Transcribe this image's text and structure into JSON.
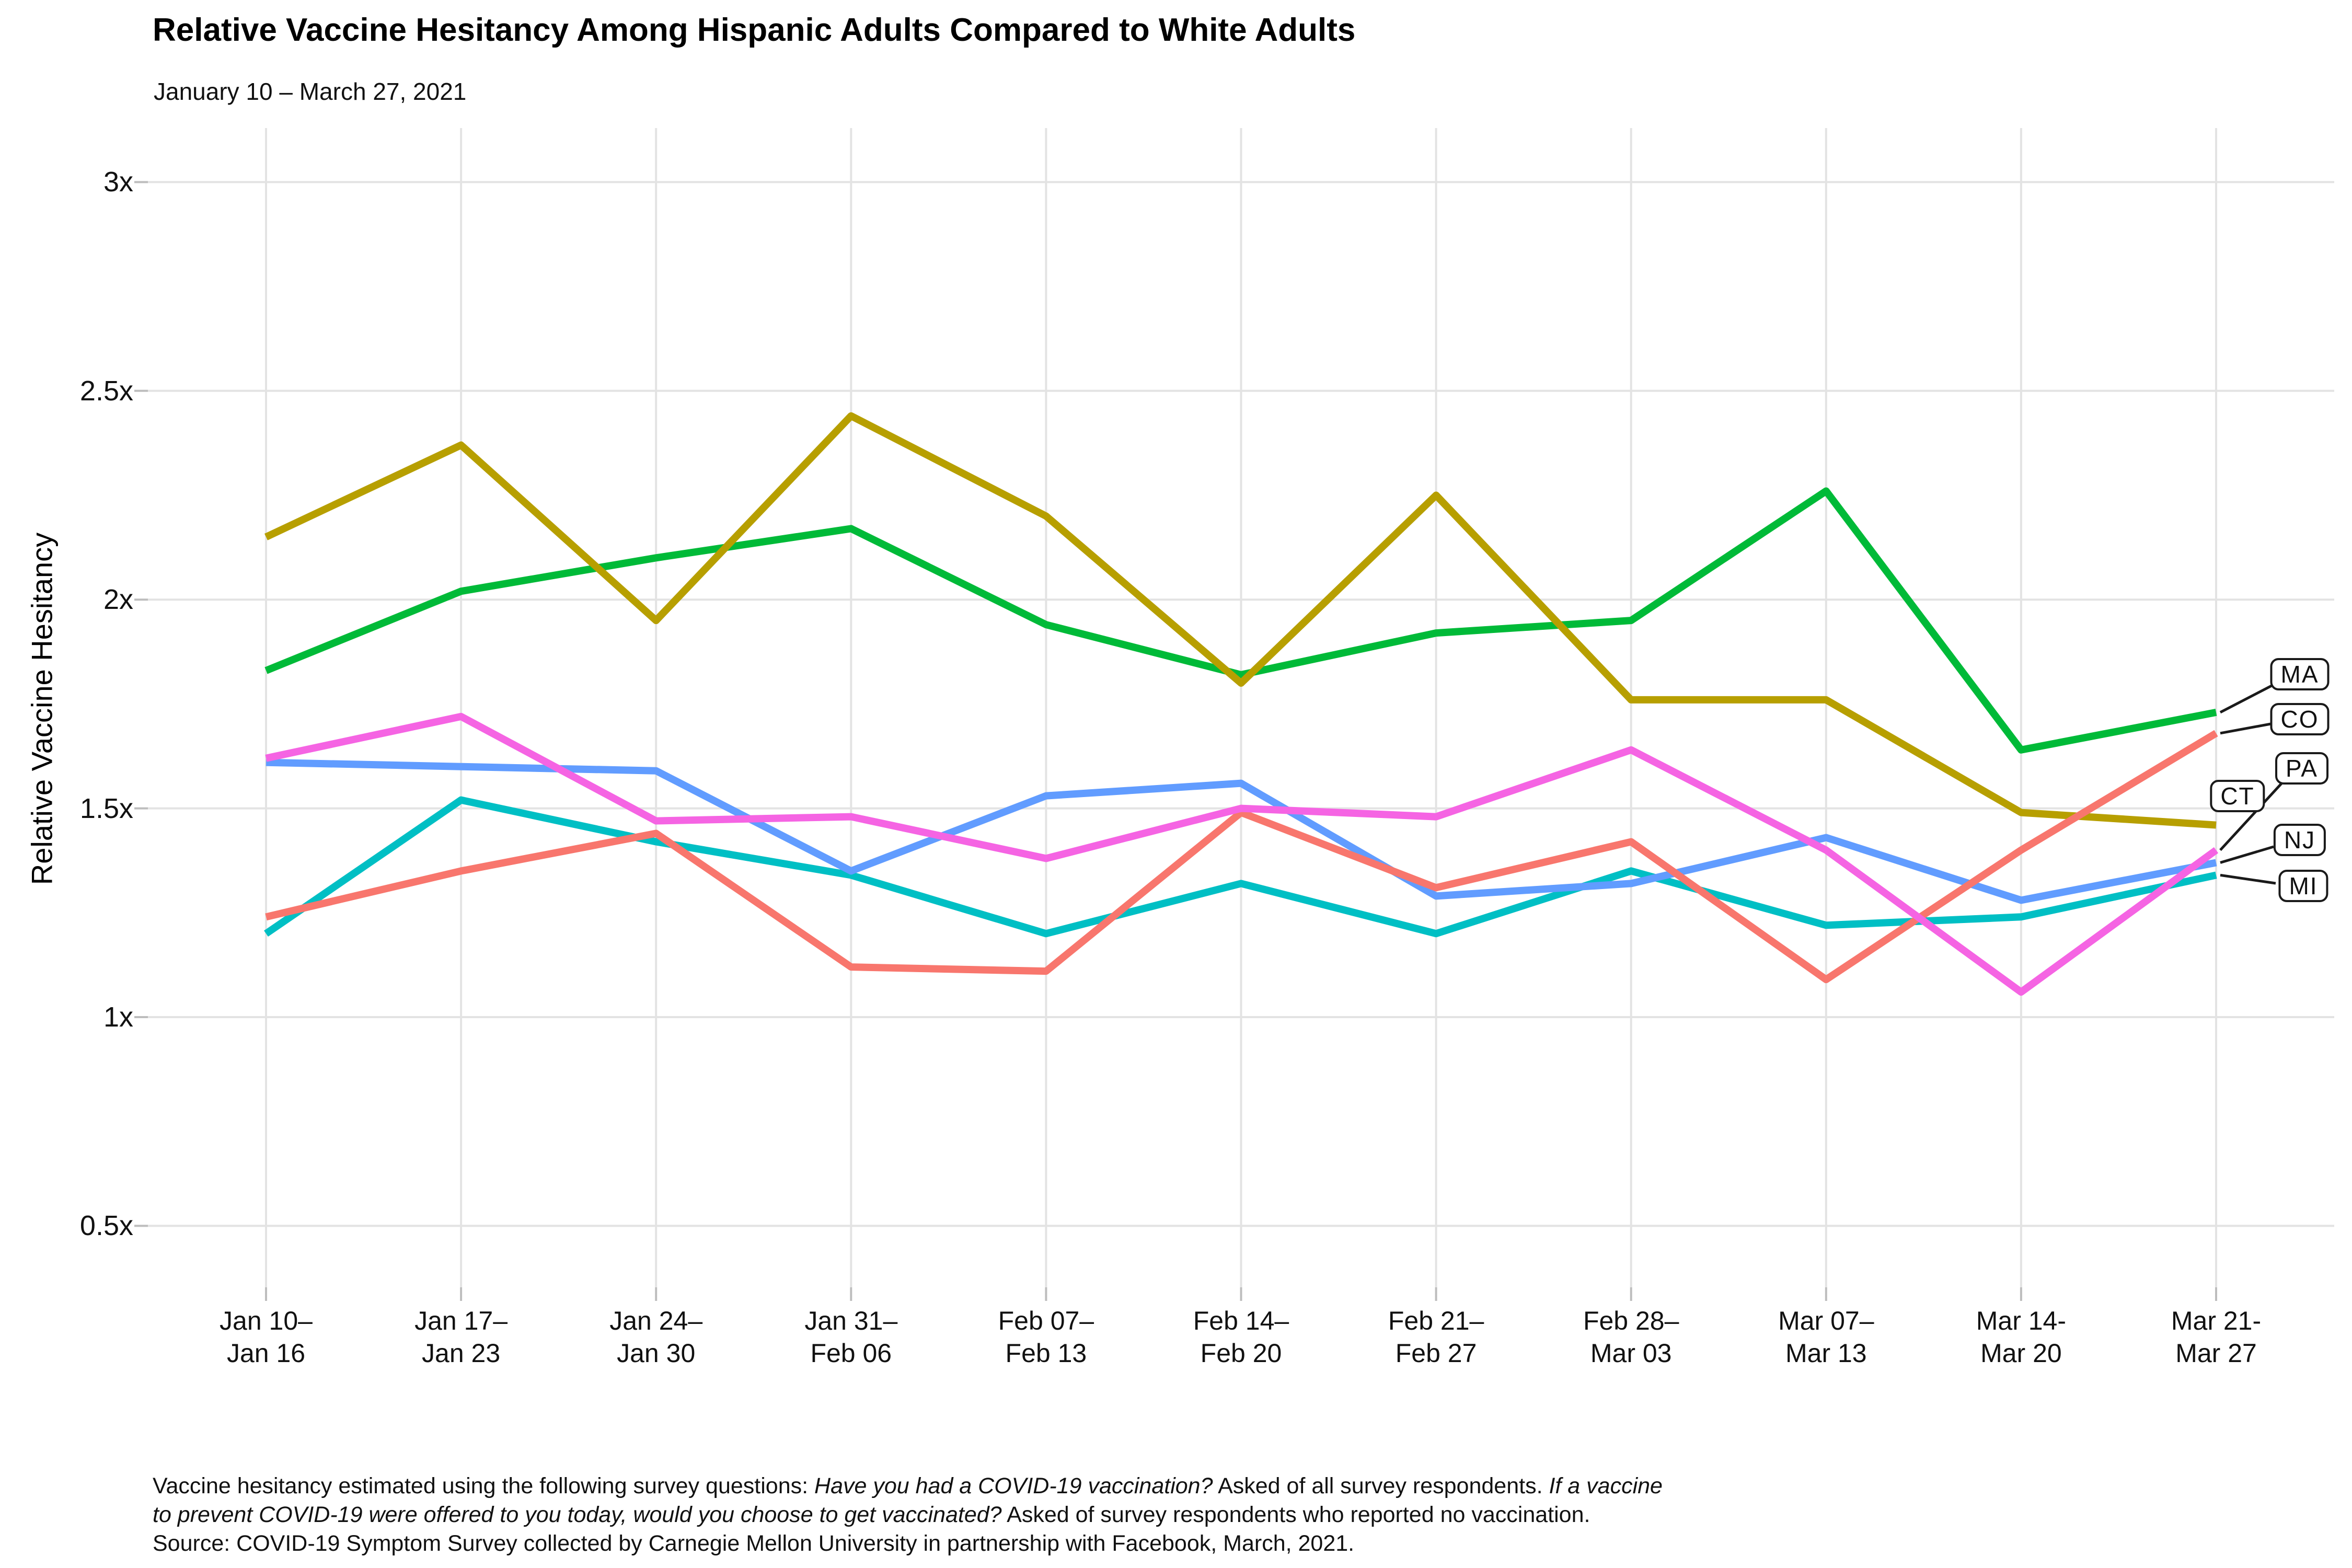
{
  "chart_data": {
    "type": "line",
    "title": "Relative Vaccine Hesitancy Among Hispanic Adults Compared to White Adults",
    "subtitle": "January 10 – March 27, 2021",
    "ylabel": "Relative Vaccine Hesitancy",
    "xlabel": "",
    "ylim": [
      0.5,
      3.0
    ],
    "grid": true,
    "legend_position": "right-inline-labels",
    "y_ticks": [
      {
        "label": "0.5x",
        "value": 0.5
      },
      {
        "label": "1x",
        "value": 1.0
      },
      {
        "label": "1.5x",
        "value": 1.5
      },
      {
        "label": "2x",
        "value": 2.0
      },
      {
        "label": "2.5x",
        "value": 2.5
      },
      {
        "label": "3x",
        "value": 3.0
      }
    ],
    "categories": [
      "Jan 10–\nJan 16",
      "Jan 17–\nJan 23",
      "Jan 24–\nJan 30",
      "Jan 31–\nFeb 06",
      "Feb 07–\nFeb 13",
      "Feb 14–\nFeb 20",
      "Feb 21–\nFeb 27",
      "Feb 28–\nMar 03",
      "Mar 07–\nMar 13",
      "Mar 14-\nMar 20",
      "Mar 21-\nMar 27"
    ],
    "series": [
      {
        "name": "MA",
        "color": "#00BA38",
        "values": [
          1.83,
          2.02,
          2.1,
          2.17,
          1.94,
          1.82,
          1.92,
          1.95,
          2.26,
          1.64,
          1.73
        ]
      },
      {
        "name": "CT",
        "color": "#B79F00",
        "values": [
          2.15,
          2.37,
          1.95,
          2.44,
          2.2,
          1.8,
          2.25,
          1.76,
          1.76,
          1.49,
          1.46
        ]
      },
      {
        "name": "MI",
        "color": "#00BFC4",
        "values": [
          1.2,
          1.52,
          1.42,
          1.34,
          1.2,
          1.32,
          1.2,
          1.35,
          1.22,
          1.24,
          1.34
        ]
      },
      {
        "name": "NJ",
        "color": "#619CFF",
        "values": [
          1.61,
          1.6,
          1.59,
          1.35,
          1.53,
          1.56,
          1.29,
          1.32,
          1.43,
          1.28,
          1.37
        ]
      },
      {
        "name": "CO",
        "color": "#F8766D",
        "values": [
          1.24,
          1.35,
          1.44,
          1.12,
          1.11,
          1.49,
          1.31,
          1.42,
          1.09,
          1.4,
          1.68
        ]
      },
      {
        "name": "PA",
        "color": "#F564E3",
        "values": [
          1.62,
          1.72,
          1.47,
          1.48,
          1.38,
          1.5,
          1.48,
          1.64,
          1.4,
          1.06,
          1.4
        ]
      }
    ],
    "colors": {
      "grid": "#E3E3E3",
      "tick": "#BDBDBD",
      "leader": "#1A1A1A",
      "label_box_border": "#1A1A1A",
      "background": "#FFFFFF"
    }
  },
  "footnote": {
    "lines": [
      {
        "segments": [
          {
            "text": "Vaccine hesitancy estimated using the following survey questions: ",
            "italic": false
          },
          {
            "text": "Have you had a COVID-19 vaccination?",
            "italic": true
          },
          {
            "text": " Asked of all survey respondents. ",
            "italic": false
          },
          {
            "text": "If a vaccine",
            "italic": true
          }
        ]
      },
      {
        "segments": [
          {
            "text": "to prevent COVID-19 were offered to you today, would you choose to get vaccinated?",
            "italic": true
          },
          {
            "text": " Asked of survey respondents who reported no vaccination.",
            "italic": false
          }
        ]
      },
      {
        "segments": [
          {
            "text": "Source: COVID-19 Symptom Survey collected by Carnegie Mellon University in partnership with Facebook, March, 2021.",
            "italic": false
          }
        ]
      }
    ]
  }
}
